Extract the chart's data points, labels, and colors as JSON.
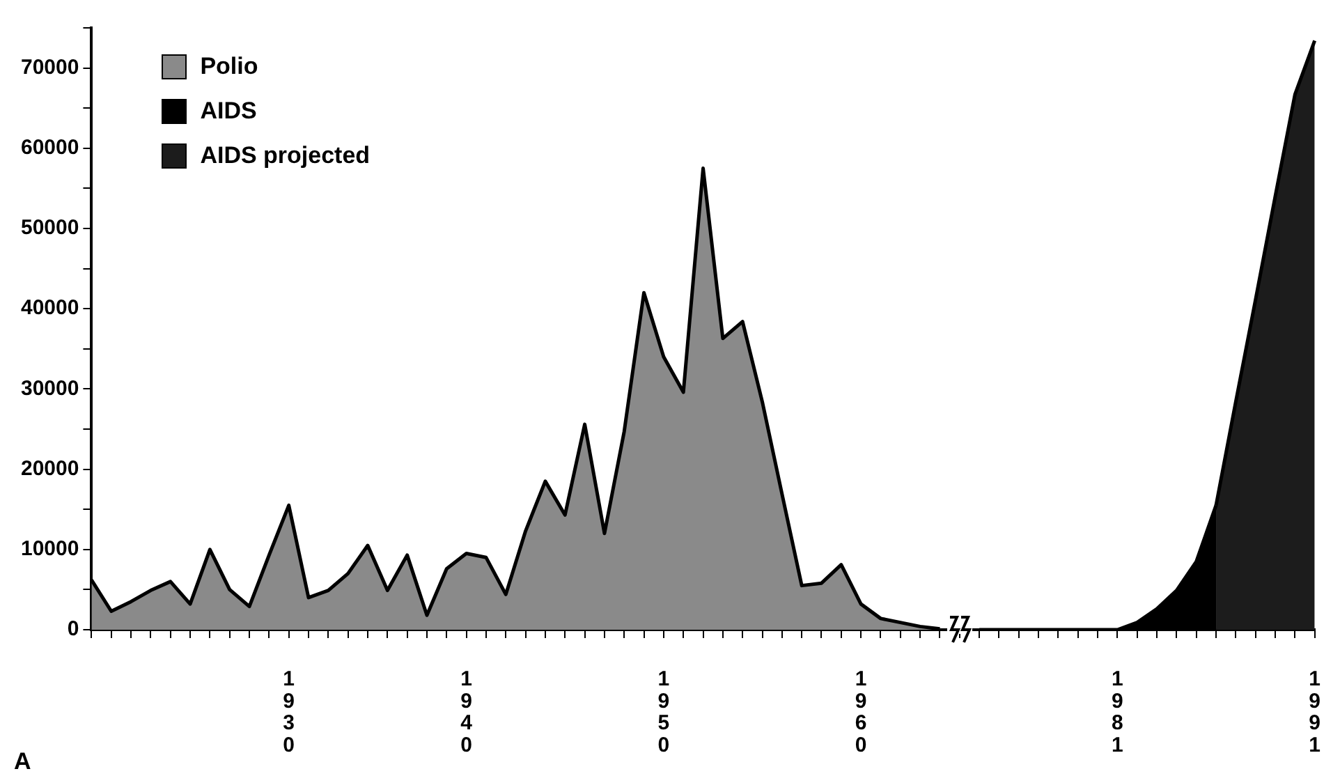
{
  "chart_data": {
    "type": "area",
    "categories": [
      null,
      null,
      null,
      null,
      null,
      null,
      null,
      null,
      null,
      null,
      "1930",
      null,
      null,
      null,
      null,
      null,
      null,
      null,
      null,
      "1940",
      null,
      null,
      null,
      null,
      null,
      null,
      null,
      null,
      null,
      "1950",
      null,
      null,
      null,
      null,
      null,
      null,
      null,
      null,
      null,
      "1960",
      null,
      null,
      null,
      null,
      null,
      null,
      null,
      null,
      null,
      null,
      null,
      null,
      "1981",
      null,
      null,
      null,
      null,
      null,
      null,
      null,
      null,
      null,
      "1991"
    ],
    "series": [
      {
        "name": "Polio",
        "color": "#8a8a8a",
        "values": [
          6200,
          2300,
          3500,
          4900,
          6000,
          3200,
          10000,
          5000,
          2900,
          9300,
          15500,
          4000,
          4900,
          7000,
          10500,
          4900,
          9300,
          1800,
          7600,
          9500,
          9000,
          4400,
          12300,
          18500,
          14300,
          25600,
          12000,
          24700,
          42000,
          34000,
          29600,
          57500,
          36300,
          38400,
          28400,
          16900,
          5500,
          5800,
          8100,
          3200,
          1400,
          900,
          400,
          100,
          null,
          null,
          null,
          null,
          null,
          null,
          null,
          null,
          null,
          null,
          null,
          null,
          null,
          null,
          null,
          null,
          null,
          null,
          null
        ]
      },
      {
        "name": "AIDS",
        "color": "#000000",
        "values": [
          null,
          null,
          null,
          null,
          null,
          null,
          null,
          null,
          null,
          null,
          null,
          null,
          null,
          null,
          null,
          null,
          null,
          null,
          null,
          null,
          null,
          null,
          null,
          null,
          null,
          null,
          null,
          null,
          null,
          null,
          null,
          null,
          null,
          null,
          null,
          null,
          null,
          null,
          null,
          null,
          null,
          null,
          null,
          null,
          null,
          0,
          0,
          0,
          0,
          0,
          0,
          0,
          0,
          900,
          2600,
          4900,
          8500,
          15500,
          null,
          null,
          null,
          null,
          null
        ]
      },
      {
        "name": "AIDS projected",
        "color": "#1c1c1c",
        "values": [
          null,
          null,
          null,
          null,
          null,
          null,
          null,
          null,
          null,
          null,
          null,
          null,
          null,
          null,
          null,
          null,
          null,
          null,
          null,
          null,
          null,
          null,
          null,
          null,
          null,
          null,
          null,
          null,
          null,
          null,
          null,
          null,
          null,
          null,
          null,
          null,
          null,
          null,
          null,
          null,
          null,
          null,
          null,
          null,
          null,
          null,
          null,
          null,
          null,
          null,
          null,
          null,
          null,
          null,
          null,
          null,
          null,
          15500,
          28400,
          41100,
          54000,
          66700,
          73400
        ]
      }
    ],
    "ylim": [
      0,
      75000
    ],
    "yticks": [
      0,
      {
        "value": 5000,
        "label": null
      },
      10000,
      {
        "value": 15000,
        "label": null
      },
      20000,
      {
        "value": 25000,
        "label": null
      },
      30000,
      {
        "value": 35000,
        "label": null
      },
      40000,
      {
        "value": 45000,
        "label": null
      },
      50000,
      {
        "value": 55000,
        "label": null
      },
      60000,
      {
        "value": 65000,
        "label": null
      },
      70000,
      {
        "value": 75000,
        "label": null
      }
    ],
    "legend": "top left",
    "annotations": [
      "A"
    ]
  }
}
